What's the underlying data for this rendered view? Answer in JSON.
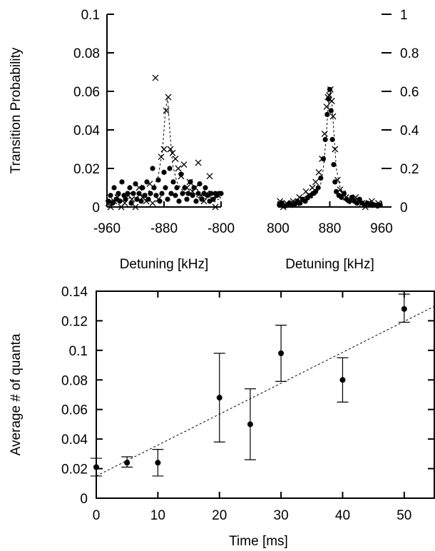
{
  "chart_data": [
    {
      "type": "scatter",
      "name": "panel-left",
      "xlabel": "Detuning [kHz]",
      "ylabel": "Transition Probability",
      "xlim": [
        -960,
        -800
      ],
      "ylim": [
        0,
        0.1
      ],
      "xticks": [
        "-960",
        "-880",
        "-800"
      ],
      "yticks": [
        "0",
        "0.02",
        "0.04",
        "0.06",
        "0.08",
        "0.1"
      ],
      "series": [
        {
          "marker": "dot",
          "x": [
            -958,
            -955,
            -952,
            -950,
            -947,
            -944,
            -942,
            -939,
            -936,
            -934,
            -931,
            -928,
            -926,
            -923,
            -920,
            -918,
            -915,
            -912,
            -910,
            -907,
            -904,
            -902,
            -899,
            -896,
            -894,
            -891,
            -888,
            -886,
            -883,
            -880,
            -878,
            -875,
            -872,
            -870,
            -867,
            -864,
            -862,
            -859,
            -856,
            -854,
            -851,
            -848,
            -846,
            -843,
            -840,
            -838,
            -835,
            -832,
            -830,
            -827,
            -824,
            -822,
            -819,
            -816,
            -814,
            -811,
            -808,
            -806,
            -803,
            -800
          ],
          "y": [
            0.003,
            0.006,
            0.002,
            0.01,
            0.004,
            0.007,
            0.003,
            0.013,
            0.006,
            0.004,
            0.007,
            0.01,
            0.002,
            0.007,
            0.012,
            0.004,
            0.007,
            0.003,
            0.01,
            0.006,
            0.013,
            0.004,
            0.007,
            0.02,
            0.01,
            0.006,
            0.014,
            0.003,
            0.007,
            0.018,
            0.01,
            0.004,
            0.02,
            0.007,
            0.013,
            0.006,
            0.01,
            0.003,
            0.017,
            0.007,
            0.01,
            0.004,
            0.007,
            0.013,
            0.006,
            0.01,
            0.003,
            0.007,
            0.012,
            0.004,
            0.007,
            0.01,
            0.006,
            0.003,
            0.007,
            0.004,
            0.007,
            0.006,
            0.007,
            0.007
          ]
        },
        {
          "marker": "x",
          "x": [
            -958,
            -955,
            -950,
            -945,
            -940,
            -935,
            -930,
            -925,
            -920,
            -915,
            -910,
            -905,
            -900,
            -896,
            -892,
            -888,
            -884,
            -880,
            -877,
            -874,
            -871,
            -868,
            -864,
            -860,
            -856,
            -852,
            -848,
            -844,
            -840,
            -836,
            -832,
            -828,
            -824,
            -820,
            -816,
            -812,
            -808,
            -804
          ],
          "y": [
            0.002,
            0.0,
            0.003,
            0.005,
            0.0,
            0.002,
            0.006,
            0.004,
            0.0,
            0.01,
            0.005,
            0.003,
            0.012,
            0.002,
            0.067,
            0.004,
            0.026,
            0.03,
            0.05,
            0.057,
            0.03,
            0.028,
            0.025,
            0.02,
            0.016,
            0.022,
            0.01,
            0.013,
            0.008,
            0.01,
            0.023,
            0.006,
            0.003,
            0.007,
            0.016,
            0.004,
            0.0,
            0.006
          ]
        }
      ],
      "fit_dashed": {
        "x": [
          -960,
          -940,
          -920,
          -905,
          -895,
          -888,
          -882,
          -878,
          -875,
          -872,
          -868,
          -862,
          -855,
          -845,
          -830,
          -815,
          -800
        ],
        "y": [
          0.003,
          0.004,
          0.005,
          0.007,
          0.01,
          0.016,
          0.03,
          0.05,
          0.057,
          0.04,
          0.022,
          0.013,
          0.009,
          0.006,
          0.005,
          0.004,
          0.004
        ]
      }
    },
    {
      "type": "scatter",
      "name": "panel-right",
      "xlabel": "Detuning [kHz]",
      "xlim": [
        800,
        960
      ],
      "ylim": [
        0,
        1
      ],
      "xticks": [
        "800",
        "880",
        "960"
      ],
      "yticks_right": [
        "0",
        "0.2",
        "0.4",
        "0.6",
        "0.8",
        "1"
      ],
      "series": [
        {
          "marker": "dot",
          "x": [
            802,
            806,
            810,
            814,
            818,
            822,
            826,
            830,
            834,
            838,
            842,
            846,
            850,
            854,
            858,
            862,
            866,
            870,
            873,
            876,
            878,
            880,
            882,
            884,
            886,
            888,
            890,
            894,
            898,
            902,
            906,
            910,
            914,
            918,
            922,
            926,
            930,
            934,
            938,
            942,
            946,
            950,
            954,
            958
          ],
          "y": [
            0.01,
            0.02,
            0.005,
            0.01,
            0.02,
            0.01,
            0.015,
            0.03,
            0.02,
            0.04,
            0.03,
            0.05,
            0.06,
            0.07,
            0.08,
            0.1,
            0.15,
            0.25,
            0.35,
            0.48,
            0.56,
            0.61,
            0.5,
            0.35,
            0.22,
            0.13,
            0.08,
            0.06,
            0.05,
            0.07,
            0.04,
            0.03,
            0.05,
            0.03,
            0.02,
            0.04,
            0.02,
            0.01,
            0.02,
            0.01,
            0.015,
            0.01,
            0.005,
            0.01
          ]
        },
        {
          "marker": "x",
          "x": [
            803,
            808,
            813,
            818,
            823,
            828,
            833,
            838,
            843,
            848,
            853,
            858,
            863,
            868,
            872,
            875,
            877,
            879,
            881,
            883,
            885,
            888,
            892,
            896,
            900,
            905,
            910,
            915,
            920,
            925,
            930,
            935,
            940,
            945,
            950,
            955
          ],
          "y": [
            0.03,
            0.0,
            0.02,
            0.01,
            0.03,
            0.02,
            0.05,
            0.04,
            0.08,
            0.06,
            0.1,
            0.13,
            0.18,
            0.25,
            0.38,
            0.52,
            0.57,
            0.58,
            0.61,
            0.55,
            0.47,
            0.3,
            0.14,
            0.09,
            0.07,
            0.05,
            0.04,
            0.03,
            0.05,
            0.03,
            0.02,
            0.0,
            0.02,
            0.03,
            0.01,
            0.02
          ]
        }
      ],
      "fit_dashed": {
        "x": [
          800,
          830,
          850,
          860,
          866,
          870,
          874,
          877,
          879,
          881,
          883,
          886,
          890,
          896,
          905,
          920,
          960
        ],
        "y": [
          0.01,
          0.02,
          0.04,
          0.07,
          0.12,
          0.2,
          0.35,
          0.5,
          0.58,
          0.6,
          0.55,
          0.4,
          0.2,
          0.1,
          0.05,
          0.025,
          0.01
        ]
      }
    },
    {
      "type": "scatter",
      "name": "panel-bottom",
      "xlabel": "Time [ms]",
      "ylabel": "Average # of quanta",
      "xlim": [
        0,
        55
      ],
      "ylim": [
        0,
        0.14
      ],
      "xticks": [
        "0",
        "10",
        "20",
        "30",
        "40",
        "50"
      ],
      "yticks": [
        "0",
        "0.02",
        "0.04",
        "0.06",
        "0.08",
        "0.1",
        "0.12",
        "0.14"
      ],
      "series": [
        {
          "marker": "dot",
          "x": [
            0,
            5,
            10,
            20,
            25,
            30,
            40,
            50
          ],
          "y": [
            0.021,
            0.024,
            0.024,
            0.068,
            0.05,
            0.098,
            0.08,
            0.128
          ],
          "err_low": [
            0.015,
            0.021,
            0.015,
            0.038,
            0.026,
            0.079,
            0.065,
            0.119
          ],
          "err_high": [
            0.027,
            0.028,
            0.033,
            0.098,
            0.074,
            0.117,
            0.095,
            0.138
          ]
        }
      ],
      "fit_dashed": {
        "x": [
          0,
          55
        ],
        "y": [
          0.015,
          0.13
        ]
      }
    }
  ]
}
